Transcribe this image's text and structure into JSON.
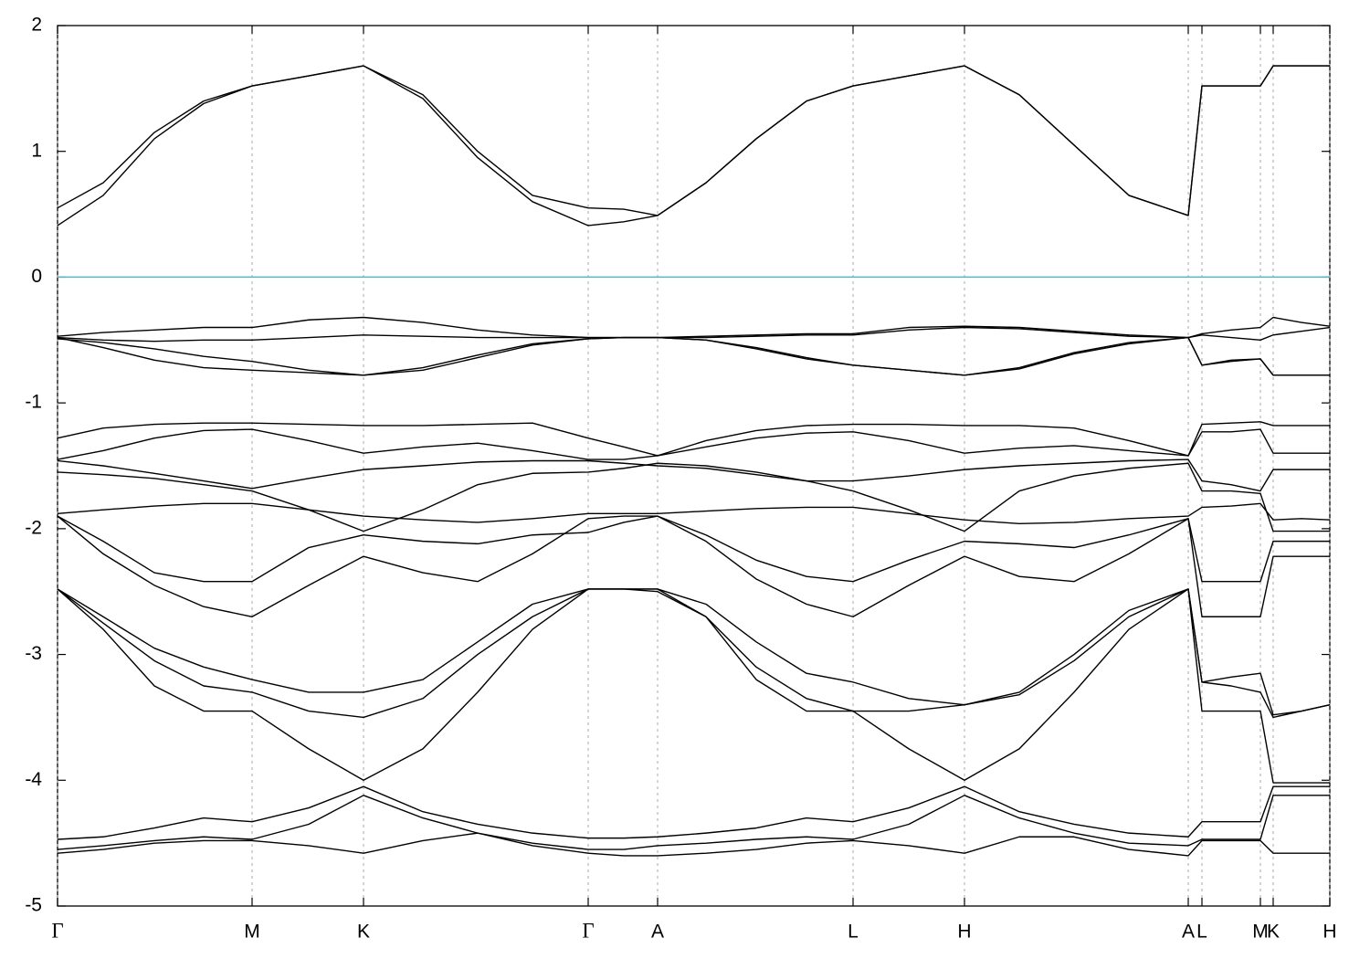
{
  "chart_data": {
    "type": "line",
    "x": [
      0,
      50,
      106,
      160,
      213,
      275,
      335,
      400,
      460,
      520,
      581,
      620,
      657,
      710,
      765,
      820,
      871,
      932,
      993,
      1053,
      1113,
      1173,
      1238,
      1253,
      1285,
      1317,
      1331,
      1362,
      1393
    ],
    "xlim": [
      0,
      1393
    ],
    "xticks": [
      {
        "value": 0,
        "label": "Γ"
      },
      {
        "value": 213,
        "label": "M"
      },
      {
        "value": 335,
        "label": "K"
      },
      {
        "value": 581,
        "label": "Γ"
      },
      {
        "value": 657,
        "label": "A"
      },
      {
        "value": 871,
        "label": "L"
      },
      {
        "value": 993,
        "label": "H"
      },
      {
        "value": 1238,
        "label": "A"
      },
      {
        "value": 1253,
        "label": "L"
      },
      {
        "value": 1317,
        "label": "M"
      },
      {
        "value": 1331,
        "label": "K"
      },
      {
        "value": 1393,
        "label": "H"
      }
    ],
    "ylim": [
      -5,
      2
    ],
    "yticks": [
      -5,
      -4,
      -3,
      -2,
      -1,
      0,
      1,
      2
    ],
    "grid": true,
    "hlines": [
      {
        "value": 0,
        "color": "#5ab4c8"
      }
    ],
    "series": [
      {
        "color": "#000000",
        "values": [
          0.55,
          0.75,
          1.15,
          1.4,
          1.52,
          1.6,
          1.68,
          1.45,
          1.0,
          0.65,
          0.55,
          0.54,
          0.49,
          0.75,
          1.1,
          1.4,
          1.52,
          1.6,
          1.68,
          1.45,
          1.05,
          0.65,
          0.49,
          1.52,
          1.52,
          1.52,
          1.68,
          1.68,
          1.68
        ]
      },
      {
        "color": "#000000",
        "values": [
          0.41,
          0.65,
          1.1,
          1.38,
          1.52,
          1.6,
          1.68,
          1.42,
          0.95,
          0.6,
          0.41,
          0.44,
          0.49,
          0.75,
          1.1,
          1.4,
          1.52,
          1.6,
          1.68,
          1.45,
          1.05,
          0.65,
          0.49,
          1.52,
          1.52,
          1.52,
          1.68,
          1.68,
          1.68
        ]
      },
      {
        "color": "#000000",
        "values": [
          -0.47,
          -0.44,
          -0.42,
          -0.4,
          -0.4,
          -0.34,
          -0.32,
          -0.36,
          -0.42,
          -0.46,
          -0.48,
          -0.48,
          -0.48,
          -0.47,
          -0.46,
          -0.45,
          -0.45,
          -0.4,
          -0.39,
          -0.4,
          -0.43,
          -0.46,
          -0.48,
          -0.45,
          -0.42,
          -0.4,
          -0.32,
          -0.36,
          -0.39
        ]
      },
      {
        "color": "#000000",
        "values": [
          -0.49,
          -0.52,
          -0.57,
          -0.63,
          -0.67,
          -0.74,
          -0.78,
          -0.72,
          -0.62,
          -0.53,
          -0.49,
          -0.48,
          -0.48,
          -0.5,
          -0.56,
          -0.64,
          -0.7,
          -0.74,
          -0.78,
          -0.72,
          -0.6,
          -0.52,
          -0.48,
          -0.7,
          -0.67,
          -0.65,
          -0.78,
          -0.78,
          -0.78
        ]
      },
      {
        "color": "#000000",
        "values": [
          -0.48,
          -0.5,
          -0.51,
          -0.5,
          -0.5,
          -0.48,
          -0.46,
          -0.47,
          -0.48,
          -0.48,
          -0.48,
          -0.48,
          -0.48,
          -0.48,
          -0.47,
          -0.46,
          -0.46,
          -0.42,
          -0.4,
          -0.41,
          -0.44,
          -0.47,
          -0.48,
          -0.46,
          -0.48,
          -0.5,
          -0.46,
          -0.43,
          -0.4
        ]
      },
      {
        "color": "#000000",
        "values": [
          -0.48,
          -0.56,
          -0.66,
          -0.72,
          -0.74,
          -0.76,
          -0.78,
          -0.74,
          -0.64,
          -0.54,
          -0.49,
          -0.48,
          -0.48,
          -0.5,
          -0.57,
          -0.65,
          -0.7,
          -0.74,
          -0.78,
          -0.73,
          -0.61,
          -0.53,
          -0.48,
          -0.7,
          -0.66,
          -0.65,
          -0.78,
          -0.78,
          -0.78
        ]
      },
      {
        "color": "#000000",
        "values": [
          -1.28,
          -1.2,
          -1.17,
          -1.16,
          -1.16,
          -1.17,
          -1.18,
          -1.18,
          -1.17,
          -1.16,
          -1.28,
          -1.35,
          -1.42,
          -1.3,
          -1.22,
          -1.18,
          -1.17,
          -1.17,
          -1.18,
          -1.18,
          -1.2,
          -1.3,
          -1.42,
          -1.17,
          -1.16,
          -1.15,
          -1.18,
          -1.18,
          -1.18
        ]
      },
      {
        "color": "#000000",
        "values": [
          -1.45,
          -1.38,
          -1.28,
          -1.22,
          -1.21,
          -1.3,
          -1.4,
          -1.35,
          -1.32,
          -1.38,
          -1.45,
          -1.45,
          -1.42,
          -1.35,
          -1.28,
          -1.24,
          -1.23,
          -1.3,
          -1.4,
          -1.36,
          -1.34,
          -1.38,
          -1.42,
          -1.23,
          -1.23,
          -1.21,
          -1.4,
          -1.4,
          -1.4
        ]
      },
      {
        "color": "#000000",
        "values": [
          -1.46,
          -1.5,
          -1.56,
          -1.62,
          -1.68,
          -1.6,
          -1.53,
          -1.5,
          -1.47,
          -1.46,
          -1.46,
          -1.48,
          -1.5,
          -1.52,
          -1.57,
          -1.62,
          -1.62,
          -1.58,
          -1.53,
          -1.5,
          -1.48,
          -1.46,
          -1.45,
          -1.62,
          -1.65,
          -1.7,
          -1.53,
          -1.53,
          -1.53
        ]
      },
      {
        "color": "#000000",
        "values": [
          -1.55,
          -1.57,
          -1.6,
          -1.65,
          -1.7,
          -1.85,
          -2.02,
          -1.85,
          -1.65,
          -1.56,
          -1.55,
          -1.52,
          -1.48,
          -1.5,
          -1.55,
          -1.62,
          -1.7,
          -1.85,
          -2.02,
          -1.7,
          -1.58,
          -1.52,
          -1.48,
          -1.7,
          -1.7,
          -1.72,
          -2.02,
          -2.02,
          -2.02
        ]
      },
      {
        "color": "#000000",
        "values": [
          -1.88,
          -1.85,
          -1.82,
          -1.8,
          -1.8,
          -1.85,
          -1.9,
          -1.93,
          -1.95,
          -1.92,
          -1.88,
          -1.88,
          -1.88,
          -1.86,
          -1.84,
          -1.83,
          -1.83,
          -1.88,
          -1.93,
          -1.96,
          -1.95,
          -1.92,
          -1.9,
          -1.83,
          -1.82,
          -1.8,
          -1.93,
          -1.92,
          -1.93
        ]
      },
      {
        "color": "#000000",
        "values": [
          -1.9,
          -2.1,
          -2.35,
          -2.42,
          -2.42,
          -2.15,
          -2.05,
          -2.1,
          -2.12,
          -2.05,
          -2.03,
          -1.95,
          -1.9,
          -2.05,
          -2.25,
          -2.38,
          -2.42,
          -2.25,
          -2.1,
          -2.12,
          -2.15,
          -2.05,
          -1.92,
          -2.42,
          -2.42,
          -2.42,
          -2.1,
          -2.1,
          -2.1
        ]
      },
      {
        "color": "#000000",
        "values": [
          -1.9,
          -2.2,
          -2.45,
          -2.62,
          -2.7,
          -2.45,
          -2.22,
          -2.35,
          -2.42,
          -2.2,
          -1.92,
          -1.9,
          -1.9,
          -2.1,
          -2.4,
          -2.6,
          -2.7,
          -2.45,
          -2.22,
          -2.38,
          -2.42,
          -2.2,
          -1.92,
          -2.7,
          -2.7,
          -2.7,
          -2.22,
          -2.22,
          -2.22
        ]
      },
      {
        "color": "#000000",
        "values": [
          -2.48,
          -2.8,
          -3.25,
          -3.45,
          -3.45,
          -3.75,
          -4.0,
          -3.75,
          -3.3,
          -2.8,
          -2.48,
          -2.48,
          -2.5,
          -2.7,
          -3.2,
          -3.45,
          -3.45,
          -3.75,
          -4.0,
          -3.75,
          -3.3,
          -2.8,
          -2.48,
          -3.45,
          -3.45,
          -3.45,
          -4.02,
          -4.02,
          -4.02
        ]
      },
      {
        "color": "#000000",
        "values": [
          -2.48,
          -2.7,
          -2.95,
          -3.1,
          -3.2,
          -3.3,
          -3.3,
          -3.2,
          -2.9,
          -2.6,
          -2.48,
          -2.48,
          -2.48,
          -2.6,
          -2.9,
          -3.15,
          -3.22,
          -3.35,
          -3.4,
          -3.3,
          -3.0,
          -2.65,
          -2.48,
          -3.22,
          -3.18,
          -3.15,
          -3.48,
          -3.45,
          -3.4
        ]
      },
      {
        "color": "#000000",
        "values": [
          -2.48,
          -2.75,
          -3.05,
          -3.25,
          -3.3,
          -3.45,
          -3.5,
          -3.35,
          -3.0,
          -2.7,
          -2.48,
          -2.48,
          -2.48,
          -2.7,
          -3.1,
          -3.35,
          -3.45,
          -3.45,
          -3.4,
          -3.32,
          -3.05,
          -2.7,
          -2.48,
          -3.22,
          -3.25,
          -3.3,
          -3.5,
          -3.45,
          -3.4
        ]
      },
      {
        "color": "#000000",
        "values": [
          -4.47,
          -4.45,
          -4.38,
          -4.3,
          -4.33,
          -4.22,
          -4.05,
          -4.25,
          -4.35,
          -4.42,
          -4.46,
          -4.46,
          -4.45,
          -4.42,
          -4.38,
          -4.3,
          -4.33,
          -4.22,
          -4.05,
          -4.25,
          -4.35,
          -4.42,
          -4.45,
          -4.33,
          -4.33,
          -4.33,
          -4.05,
          -4.05,
          -4.05
        ]
      },
      {
        "color": "#000000",
        "values": [
          -4.55,
          -4.52,
          -4.48,
          -4.45,
          -4.47,
          -4.35,
          -4.12,
          -4.3,
          -4.42,
          -4.5,
          -4.55,
          -4.55,
          -4.52,
          -4.5,
          -4.47,
          -4.45,
          -4.47,
          -4.35,
          -4.12,
          -4.3,
          -4.42,
          -4.5,
          -4.52,
          -4.47,
          -4.47,
          -4.47,
          -4.12,
          -4.12,
          -4.12
        ]
      },
      {
        "color": "#000000",
        "values": [
          -4.58,
          -4.55,
          -4.5,
          -4.48,
          -4.48,
          -4.52,
          -4.58,
          -4.48,
          -4.42,
          -4.52,
          -4.58,
          -4.6,
          -4.6,
          -4.58,
          -4.55,
          -4.5,
          -4.48,
          -4.52,
          -4.58,
          -4.45,
          -4.45,
          -4.55,
          -4.6,
          -4.48,
          -4.48,
          -4.48,
          -4.58,
          -4.58,
          -4.58
        ]
      }
    ]
  }
}
